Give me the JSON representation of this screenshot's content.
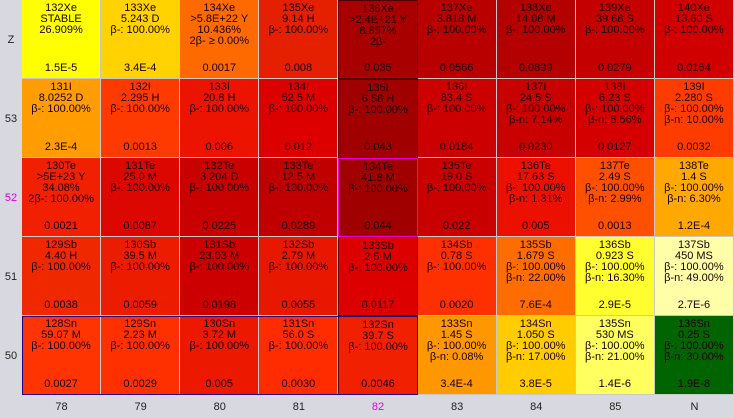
{
  "rows": [
    {
      "label": "Z",
      "cells": [
        {
          "color": "#ffff00",
          "lines": [
            "132Xe",
            "STABLE",
            "26.909%",
            "1.5E-5"
          ]
        },
        {
          "color": "#ffd200",
          "lines": [
            "133Xe",
            "5.243 D",
            "β-: 100.00%",
            "3.4E-4"
          ]
        },
        {
          "color": "#ff6a00",
          "lines": [
            "134Xe",
            ">5.8E+22 Y",
            "10.436%",
            "2β- ≥ 0.00%",
            "0.0017"
          ]
        },
        {
          "color": "#e42000",
          "lines": [
            "135Xe",
            "9.14 H",
            "β-: 100.00%",
            "0.008"
          ]
        },
        {
          "color": "#a80000",
          "lines": [
            "136Xe",
            ">2.4E+21 Y",
            "8.857%",
            "2β-",
            "0.035"
          ]
        },
        {
          "color": "#b80000",
          "lines": [
            "137Xe",
            "3.818 M",
            "β-: 100.00%",
            "0.0566"
          ]
        },
        {
          "color": "#b40000",
          "lines": [
            "138Xe",
            "14.08 M",
            "β-: 100.00%",
            "0.0899"
          ]
        },
        {
          "color": "#c40000",
          "lines": [
            "139Xe",
            "39.68 S",
            "β-: 100.00%",
            "0.0279"
          ]
        },
        {
          "color": "#d00000",
          "lines": [
            "140Xe",
            "13.60 S",
            "β-: 100.00%",
            "0.0154"
          ]
        }
      ]
    },
    {
      "label": "53",
      "cells": [
        {
          "color": "#ff9c00",
          "lines": [
            "131I",
            "8.0252 D",
            "β-: 100.00%",
            "2.3E-4"
          ]
        },
        {
          "color": "#ff3a00",
          "lines": [
            "132I",
            "2.295 H",
            "β-: 100.00%",
            "0.0013"
          ]
        },
        {
          "color": "#ec1400",
          "lines": [
            "133I",
            "20.8 H",
            "β-: 100.00%",
            "0.006"
          ]
        },
        {
          "color": "#dc0000",
          "lines": [
            "134I",
            "52.5 M",
            "β-: 100.00%",
            "0.012"
          ]
        },
        {
          "color": "#a00000",
          "lines": [
            "135I",
            "6.58 H",
            "β-: 100.00%",
            "0.043"
          ]
        },
        {
          "color": "#cc0000",
          "lines": [
            "136I",
            "83.4 S",
            "β-: 100.00%",
            "0.0184"
          ]
        },
        {
          "color": "#c80000",
          "lines": [
            "137I",
            "24.5 S",
            "β-: 100.00%",
            "β-n: 7.14%",
            "0.0230"
          ]
        },
        {
          "color": "#d40000",
          "lines": [
            "138I",
            "6.23 S",
            "β-: 100.00%",
            "β-n: 5.56%",
            "0.0127"
          ]
        },
        {
          "color": "#ff3c00",
          "lines": [
            "139I",
            "2.280 S",
            "β-: 100.00%",
            "β-n: 10.00%",
            "0.0032"
          ]
        }
      ]
    },
    {
      "label": "52",
      "cells": [
        {
          "color": "#f02000",
          "lines": [
            "130Te",
            ">5E+23 Y",
            "34.08%",
            "2β-: 100.00%",
            "0.0021"
          ]
        },
        {
          "color": "#dc0800",
          "lines": [
            "131Te",
            "25.0 M",
            "β-: 100.00%",
            "0.0087"
          ]
        },
        {
          "color": "#c80000",
          "lines": [
            "132Te",
            "3.204 D",
            "β-: 100.00%",
            "0.0225"
          ]
        },
        {
          "color": "#c00000",
          "lines": [
            "133Te",
            "12.5 M",
            "β-: 100.00%",
            "0.0289"
          ]
        },
        {
          "color": "#a00000",
          "lines": [
            "134Te",
            "41.8 M",
            "β-: 100.00%",
            "0.044"
          ]
        },
        {
          "color": "#c80000",
          "lines": [
            "135Te",
            "19.0 S",
            "β-: 100.00%",
            "0.022"
          ]
        },
        {
          "color": "#ec1000",
          "lines": [
            "136Te",
            "17.63 S",
            "β-: 100.00%",
            "β-n: 1.31%",
            "0.005"
          ]
        },
        {
          "color": "#ff5000",
          "lines": [
            "137Te",
            "2.49 S",
            "β-: 100.00%",
            "β-n: 2.99%",
            "0.0013"
          ]
        },
        {
          "color": "#ffa800",
          "lines": [
            "138Te",
            "1.4 S",
            "β-: 100.00%",
            "β-n: 6.30%",
            "1.2E-4"
          ]
        }
      ]
    },
    {
      "label": "51",
      "cells": [
        {
          "color": "#f02800",
          "lines": [
            "129Sb",
            "4.40 H",
            "β-: 100.00%",
            "0.0038"
          ]
        },
        {
          "color": "#ec1c00",
          "lines": [
            "130Sb",
            "39.5 M",
            "β-: 100.00%",
            "0.0059"
          ]
        },
        {
          "color": "#cc0000",
          "lines": [
            "131Sb",
            "23.03 M",
            "β-: 100.00%",
            "0.0198"
          ]
        },
        {
          "color": "#e81800",
          "lines": [
            "132Sb",
            "2.79 M",
            "β-: 100.00%",
            "0.0055"
          ]
        },
        {
          "color": "#dc0000",
          "lines": [
            "133Sb",
            "2.5 M",
            "β-: 100.00%",
            "0.0117"
          ]
        },
        {
          "color": "#ff3000",
          "lines": [
            "134Sb",
            "0.78 S",
            "β-: 100.00%",
            "0.0020"
          ]
        },
        {
          "color": "#ff6c00",
          "lines": [
            "135Sb",
            "1.679 S",
            "β-: 100.00%",
            "β-n: 22.00%",
            "7.6E-4"
          ]
        },
        {
          "color": "#ffff30",
          "lines": [
            "136Sb",
            "0.923 S",
            "β-: 100.00%",
            "β-n: 16.30%",
            "2.9E-5"
          ]
        },
        {
          "color": "#ffffa8",
          "lines": [
            "137Sb",
            "450 MS",
            "β-: 100.00%",
            "β-n: 49.00%",
            "2.7E-6"
          ]
        }
      ]
    },
    {
      "label": "50",
      "cells": [
        {
          "color": "#ff3400",
          "lines": [
            "128Sn",
            "59.07 M",
            "β-: 100.00%",
            "0.0027"
          ]
        },
        {
          "color": "#ff3000",
          "lines": [
            "129Sn",
            "2.23 M",
            "β-: 100.00%",
            "0.0029"
          ]
        },
        {
          "color": "#ec1800",
          "lines": [
            "130Sn",
            "3.72 M",
            "β-: 100.00%",
            "0.005"
          ]
        },
        {
          "color": "#ff2c00",
          "lines": [
            "131Sn",
            "56.0 S",
            "β-: 100.00%",
            "0.0030"
          ]
        },
        {
          "color": "#f02000",
          "lines": [
            "132Sn",
            "39.7 S",
            "β-: 100.00%",
            "0.0046"
          ]
        },
        {
          "color": "#ff9800",
          "lines": [
            "133Sn",
            "1.45 S",
            "β-: 100.00%",
            "β-n: 0.08%",
            "3.4E-4"
          ]
        },
        {
          "color": "#ffcc00",
          "lines": [
            "134Sn",
            "1.050 S",
            "β-: 100.00%",
            "β-n: 17.00%",
            "3.8E-5"
          ]
        },
        {
          "color": "#ffff60",
          "lines": [
            "135Sn",
            "530 MS",
            "β-: 100.00%",
            "β-n: 21.00%",
            "1.4E-6"
          ]
        },
        {
          "color": "#006400",
          "lines": [
            "136Sn",
            "0.25 S",
            "β-: 100.00%",
            "β-n: 30.00%",
            "1.9E-8"
          ]
        }
      ]
    }
  ],
  "columns": [
    "78",
    "79",
    "80",
    "81",
    "82",
    "83",
    "84",
    "85",
    "N"
  ],
  "selected": {
    "row": 2,
    "column": 4
  }
}
